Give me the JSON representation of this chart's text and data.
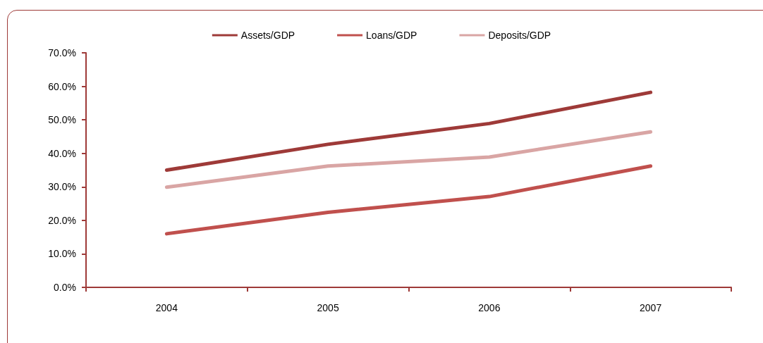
{
  "chart_data": {
    "type": "line",
    "categories": [
      "2004",
      "2005",
      "2006",
      "2007"
    ],
    "series": [
      {
        "name": "Assets/GDP",
        "color": "#9e3a38",
        "values": [
          35.0,
          42.7,
          48.9,
          58.2
        ]
      },
      {
        "name": "Loans/GDP",
        "color": "#c0504d",
        "values": [
          16.0,
          22.4,
          27.1,
          36.2
        ]
      },
      {
        "name": "Deposits/GDP",
        "color": "#d9a5a4",
        "values": [
          29.9,
          36.2,
          38.9,
          46.4
        ]
      }
    ],
    "ylim": [
      0,
      70
    ],
    "yticks": [
      {
        "value": 0,
        "label": "0.0%"
      },
      {
        "value": 10,
        "label": "10.0%"
      },
      {
        "value": 20,
        "label": "20.0%"
      },
      {
        "value": 30,
        "label": "30.0%"
      },
      {
        "value": 40,
        "label": "40.0%"
      },
      {
        "value": 50,
        "label": "50.0%"
      },
      {
        "value": 60,
        "label": "60.0%"
      },
      {
        "value": 70,
        "label": "70.0%"
      }
    ],
    "grid": false,
    "legend": "top",
    "marker": "none",
    "line_style": "solid"
  }
}
